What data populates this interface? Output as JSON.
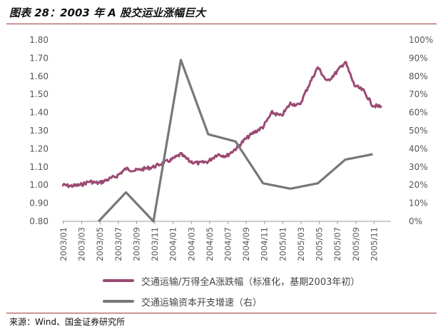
{
  "title": "图表 28：2003 年 A 股交运业涨幅巨大",
  "source": "来源：Wind、国金证券研究所",
  "chart_data": {
    "type": "line",
    "x_ticks": [
      "2003/01",
      "2003/03",
      "2003/05",
      "2003/07",
      "2003/09",
      "2003/11",
      "2004/01",
      "2004/03",
      "2004/05",
      "2004/07",
      "2004/09",
      "2004/11",
      "2005/01",
      "2005/03",
      "2005/05",
      "2005/07",
      "2005/09",
      "2005/11"
    ],
    "y_left": {
      "ticks": [
        "0.80",
        "0.90",
        "1.00",
        "1.10",
        "1.20",
        "1.30",
        "1.40",
        "1.50",
        "1.60",
        "1.70",
        "1.80"
      ],
      "ylim": [
        0.8,
        1.8
      ]
    },
    "y_right": {
      "ticks": [
        "0%",
        "10%",
        "20%",
        "30%",
        "40%",
        "50%",
        "60%",
        "70%",
        "80%",
        "90%",
        "100%"
      ],
      "ylim": [
        0,
        100
      ]
    },
    "series": [
      {
        "name": "交通运输/万得全A涨跌幅（标准化，基期2003年初）",
        "axis": "left",
        "color": "#9b4a74",
        "points": [
          [
            "2003-01",
            1.0
          ],
          [
            "2003-02",
            0.995
          ],
          [
            "2003-03",
            1.0
          ],
          [
            "2003-04",
            1.02
          ],
          [
            "2003-05",
            1.01
          ],
          [
            "2003-06",
            1.03
          ],
          [
            "2003-07",
            1.05
          ],
          [
            "2003-08",
            1.09
          ],
          [
            "2003-09",
            1.08
          ],
          [
            "2003-10",
            1.09
          ],
          [
            "2003-11",
            1.1
          ],
          [
            "2003-12",
            1.12
          ],
          [
            "2004-01",
            1.14
          ],
          [
            "2004-02",
            1.17
          ],
          [
            "2004-03",
            1.13
          ],
          [
            "2004-04",
            1.12
          ],
          [
            "2004-05",
            1.13
          ],
          [
            "2004-06",
            1.17
          ],
          [
            "2004-07",
            1.16
          ],
          [
            "2004-08",
            1.2
          ],
          [
            "2004-09",
            1.25
          ],
          [
            "2004-10",
            1.29
          ],
          [
            "2004-11",
            1.32
          ],
          [
            "2004-12",
            1.4
          ],
          [
            "2005-01",
            1.38
          ],
          [
            "2005-02",
            1.45
          ],
          [
            "2005-03",
            1.44
          ],
          [
            "2005-04",
            1.55
          ],
          [
            "2005-05",
            1.65
          ],
          [
            "2005-06",
            1.57
          ],
          [
            "2005-07",
            1.62
          ],
          [
            "2005-08",
            1.68
          ],
          [
            "2005-09",
            1.55
          ],
          [
            "2005-10",
            1.52
          ],
          [
            "2005-11",
            1.44
          ],
          [
            "2005-12",
            1.43
          ]
        ]
      },
      {
        "name": "交通运输资本开支增速（右）",
        "axis": "right",
        "color": "#777777",
        "points": [
          [
            "2003-05",
            0
          ],
          [
            "2003-08",
            16
          ],
          [
            "2003-11",
            0
          ],
          [
            "2004-02",
            89
          ],
          [
            "2004-05",
            48
          ],
          [
            "2004-08",
            44
          ],
          [
            "2004-11",
            21
          ],
          [
            "2005-02",
            18
          ],
          [
            "2005-05",
            21
          ],
          [
            "2005-08",
            34
          ],
          [
            "2005-11",
            37
          ]
        ]
      }
    ]
  }
}
